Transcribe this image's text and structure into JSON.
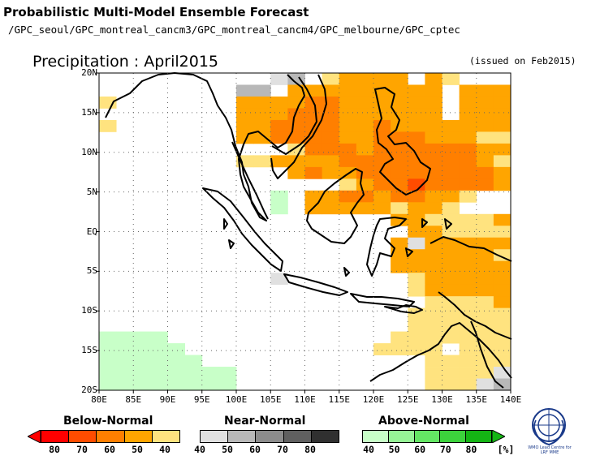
{
  "header": {
    "title": "Probabilistic Multi-Model Ensemble Forecast",
    "models": "/GPC_seoul/GPC_montreal_cancm3/GPC_montreal_cancm4/GPC_melbourne/GPC_cptec",
    "map_title": "Precipitation : April2015",
    "issued": "(issued on Feb2015)"
  },
  "map": {
    "x_ticks": [
      "80E",
      "85E",
      "90E",
      "95E",
      "100E",
      "105E",
      "110E",
      "115E",
      "120E",
      "125E",
      "130E",
      "135E",
      "140E"
    ],
    "y_ticks": [
      "20N",
      "15N",
      "10N",
      "5N",
      "EQ",
      "5S",
      "10S",
      "15S",
      "20S"
    ],
    "lon_range": [
      80,
      140
    ],
    "lat_range": [
      -20,
      20
    ],
    "grid_step_deg": 2.5,
    "palette": {
      "B40": "#ffe37f",
      "B50": "#ffa500",
      "B60": "#ff7f00",
      "B70": "#ff4c00",
      "B80": "#ff0000",
      "N40": "#e0e0e0",
      "N50": "#b8b8b8",
      "N60": "#8c8c8c",
      "N70": "#606060",
      "N80": "#303030",
      "A40": "#c8ffc8",
      "A50": "#96f596",
      "A60": "#64e664",
      "A70": "#3cd23c",
      "A80": "#14b414"
    },
    "grid_rows_north_to_south": [
      "..........N40N50.B40B50B50B50B50.B50B40.........B40B40B40...........",
      "........N50N50.B50B50B50B50B50B50B50B50B50.B50B50B50B50B50.N50N40.......",
      "B40.......B50B50B50B50B60B60B50B50B50B50B50B50.B50B50B50B50N40N40N50N40.......",
      "........B50B50B50B60B60B60B50B50B50B50B50B50.B50B50B50B50N40N50N50B40.......",
      "B40.......B50B50B60B60B60B60B50B50B60B50B50B50B50B50B50B50N40N40B40B40.......",
      "........B50B50B60B60B60B60B50B50B60B60B60B50B50B50B40B40B40B40B40B40.......",
      "...........B40B60B60B60B50B60B60B60B60B60B60B50B50B40B40B40B40B40B40B40.....",
      "........B40B40B50B50B50B50B60B60B60B60B60B60B60B60B50B40B40B40.B40B40B40.......",
      "...........B50B60B50B50B60B60B60B60B60B60B60B60B50B40B40B40B40B40B40B50B40B50.B50.B50B50",
      "..............B40B50B60B60B70B60B60B60B60B50B50B40B40B40B40B40B50B50B60B70B50B50",
      "..........A40.B50B50B60B60B50B60B60B50B50B40....B40B40B50B50B50B50B50B50",
      "..........A40.B50B50B50B50B50B40B50B50B40....B40B50B50B50B50B50B50B50",
      ".................B50B50B40B40B40B40B50N40B50B40B40B50B50B50B50B50B50B50",
      "..................B50B50B40B40B40B40B40B40B40B50B50B50N40B50B50B50",
      ".................B50N40B50B50B50B50B50B50B50B50B50B50B50B50B50B50B50",
      ".................B50B50B50B50B50B50B40B40B40B50B50B50B50B50B50B50",
      ".................B50B50B50B50B50B50B50B50B50B50B50B50B50B50B50B50",
      "..........N40.......B40B50B50B50B50B50B50B50B50B50B60B60B50B50",
      "..................B40B50B50B50B50B50B50B50B50B50B50B60B60B60",
      "...................B40B40B40B40B50B50B50B50B50B50B50B50",
      "..................B40B40B40B40B40B40B40B40B40B50B50N50B50",
      "..................B40B40B40B40B40B40B40B40B40B40N40N40N40",
      "A40A40A40A40.............B40B40B40B40B40B40B40B50B50N40N50N50N40",
      "A40A40A40A40A40...........B40B40B40B40.B40B40B40B50B50N50N50N50N40",
      "A40A40A40A40A40A40.............B40B40B40B40B40N40N50N50N40N40",
      "A40A40A40A40A40A40A40A40...........B40B40B40B40N40N50N50N40N40",
      "A40A40A40A40A40A40A40A40...........B40B40B40N40N50N50N40N40"
    ]
  },
  "legend": {
    "below": {
      "title": "Below-Normal",
      "ticks": [
        "80",
        "70",
        "60",
        "50",
        "40"
      ],
      "colors": [
        "#ff0000",
        "#ff4c00",
        "#ff7f00",
        "#ffa500",
        "#ffe37f"
      ]
    },
    "near": {
      "title": "Near-Normal",
      "ticks": [
        "40",
        "50",
        "60",
        "70",
        "80"
      ],
      "colors": [
        "#e0e0e0",
        "#b8b8b8",
        "#8c8c8c",
        "#606060",
        "#303030"
      ]
    },
    "above": {
      "title": "Above-Normal",
      "ticks": [
        "40",
        "50",
        "60",
        "70",
        "80"
      ],
      "unit": "[%]",
      "colors": [
        "#c8ffc8",
        "#96f596",
        "#64e664",
        "#3cd23c",
        "#14b414"
      ]
    }
  },
  "logo": {
    "text": "WMO Lead Centre for LRF MME"
  }
}
